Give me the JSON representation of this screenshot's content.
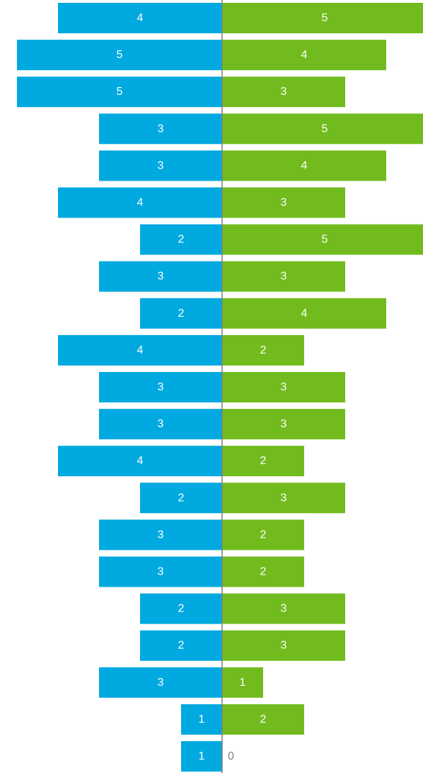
{
  "chart_data": {
    "type": "bar",
    "orientation": "horizontal-diverging",
    "xlim": [
      -5,
      5
    ],
    "grid": false,
    "legend": "none",
    "series": [
      {
        "color": "#00A9E0",
        "direction": "left",
        "values": [
          4,
          5,
          5,
          3,
          3,
          4,
          2,
          3,
          2,
          4,
          3,
          3,
          4,
          2,
          3,
          3,
          2,
          2,
          3,
          1,
          1
        ]
      },
      {
        "color": "#72BB1F",
        "direction": "right",
        "values": [
          5,
          4,
          3,
          5,
          4,
          3,
          5,
          3,
          4,
          2,
          3,
          3,
          2,
          3,
          2,
          2,
          3,
          3,
          1,
          2,
          0
        ]
      }
    ],
    "colors": {
      "axis": "#7F7F7F",
      "label_inside": "#FFFFFF",
      "label_outside": "#7F7F7F"
    }
  }
}
